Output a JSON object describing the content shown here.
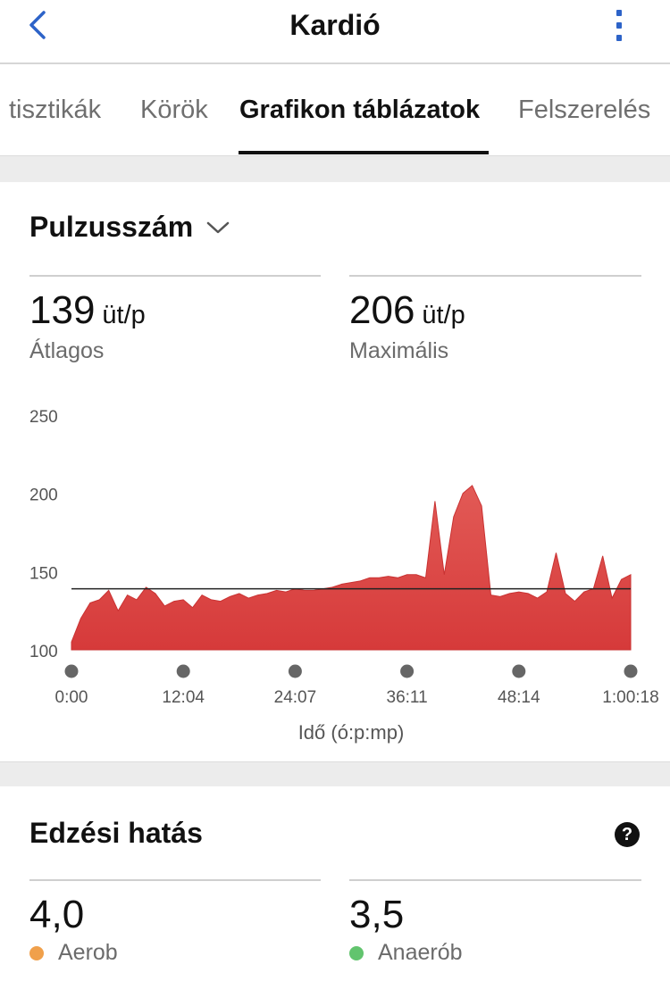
{
  "header": {
    "title": "Kardió"
  },
  "tabs": [
    {
      "label": "tisztikák"
    },
    {
      "label": "Körök"
    },
    {
      "label": "Grafikon táblázatok"
    },
    {
      "label": "Felszerelés"
    }
  ],
  "heart_rate": {
    "metric": "Pulzusszám",
    "average": {
      "value": "139",
      "unit": "üt/p",
      "label": "Átlagos"
    },
    "max": {
      "value": "206",
      "unit": "üt/p",
      "label": "Maximális"
    }
  },
  "chart_data": {
    "type": "area",
    "xlabel": "Idő (ó:p:mp)",
    "ylabel": "",
    "ylim": [
      100,
      250
    ],
    "yticks": [
      "250",
      "200",
      "150",
      "100"
    ],
    "xticks": [
      "0:00",
      "12:04",
      "24:07",
      "36:11",
      "48:14",
      "1:00:18"
    ],
    "average_line": 139,
    "series_color": "#d63a3a",
    "x": [
      0,
      1,
      2,
      3,
      4,
      5,
      6,
      7,
      8,
      9,
      10,
      11,
      12,
      13,
      14,
      15,
      16,
      17,
      18,
      19,
      20,
      21,
      22,
      23,
      24,
      25,
      26,
      27,
      28,
      29,
      30,
      31,
      32,
      33,
      34,
      35,
      36,
      37,
      38,
      39,
      40,
      41,
      42,
      43,
      44,
      45,
      46,
      47,
      48,
      49,
      50,
      51,
      52,
      53,
      54,
      55,
      56,
      57,
      58,
      59,
      60
    ],
    "values": [
      105,
      120,
      130,
      132,
      138,
      125,
      135,
      132,
      140,
      136,
      128,
      131,
      132,
      127,
      135,
      132,
      131,
      134,
      136,
      133,
      135,
      136,
      138,
      137,
      139,
      138,
      138,
      139,
      140,
      142,
      143,
      144,
      146,
      146,
      147,
      146,
      148,
      148,
      146,
      195,
      148,
      185,
      200,
      205,
      192,
      135,
      134,
      136,
      137,
      136,
      133,
      137,
      162,
      136,
      131,
      137,
      139,
      160,
      133,
      145,
      148
    ]
  },
  "training_effect": {
    "title": "Edzési hatás",
    "help": "?",
    "aerobic": {
      "value": "4,0",
      "label": "Aerob",
      "color": "#f0a04b"
    },
    "anaerobic": {
      "value": "3,5",
      "label": "Anaerób",
      "color": "#62c46e"
    }
  }
}
